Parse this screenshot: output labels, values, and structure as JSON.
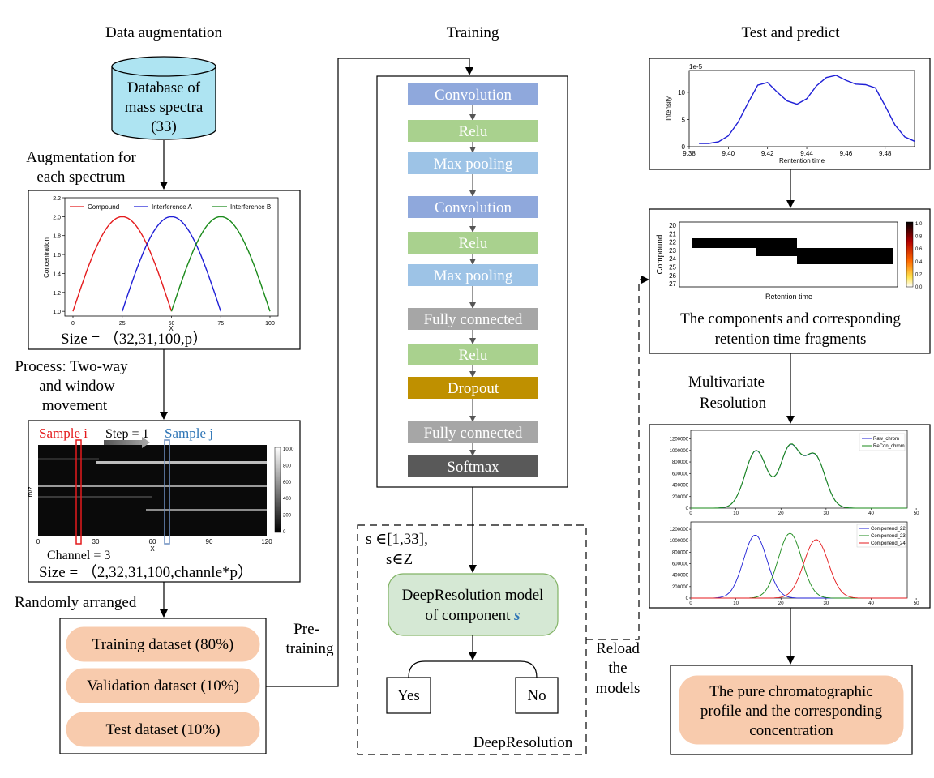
{
  "columns": {
    "augmentation": "Data augmentation",
    "training": "Training",
    "test": "Test and predict"
  },
  "database": {
    "line1": "Database of",
    "line2": "mass spectra",
    "line3": "(33)"
  },
  "aug_label": {
    "line1": "Augmentation for",
    "line2": "each spectrum"
  },
  "aug_plot": {
    "ylabel": "Concentration",
    "xlabel": "X",
    "yticks": [
      "1.0",
      "1.2",
      "1.4",
      "1.6",
      "1.8",
      "2.0",
      "2.2"
    ],
    "xticks": [
      "0",
      "25",
      "50",
      "75",
      "100"
    ],
    "legend": [
      "Compound",
      "Interference A",
      "Interference B"
    ],
    "colors": [
      "#e41a1c",
      "#1f1fd6",
      "#1a8a1a"
    ]
  },
  "size1": "Size = （32,31,100,p）",
  "process_label": {
    "line1": "Process: Two-way",
    "line2": "and window",
    "line3": "movement"
  },
  "heatmap": {
    "sample_i": "Sample i",
    "sample_j": "Sample j",
    "step": "Step = 1",
    "ylabel": "m/z",
    "xlabel": "X",
    "xticks": [
      "0",
      "30",
      "60",
      "90",
      "120"
    ],
    "cbar_ticks": [
      "1000",
      "800",
      "600",
      "400",
      "200",
      "0"
    ],
    "channel": "Channel = 3"
  },
  "size2": "Size = （2,32,31,100,channle*p）",
  "arranged": "Randomly arranged",
  "datasets": [
    "Training dataset (80%)",
    "Validation dataset (10%)",
    "Test dataset (10%)"
  ],
  "pretraining": {
    "line1": "Pre-",
    "line2": "training"
  },
  "layers": [
    "Convolution",
    "Relu",
    "Max pooling",
    "Convolution",
    "Relu",
    "Max pooling",
    "Fully connected",
    "Relu",
    "Dropout",
    "Fully connected",
    "Softmax"
  ],
  "layer_colors": [
    "#8fa8dc",
    "#a9d18e",
    "#9dc3e6",
    "#8fa8dc",
    "#a9d18e",
    "#9dc3e6",
    "#a6a6a6",
    "#a9d18e",
    "#bf9000",
    "#a6a6a6",
    "#595959"
  ],
  "condition": {
    "line1": "s ∈[1,33],",
    "line2": "s∈Z"
  },
  "model": {
    "line1": "DeepResolution model",
    "line2": "of component",
    "symbol": "s"
  },
  "decision": {
    "yes": "Yes",
    "no": "No"
  },
  "deepres_label": "DeepResolution",
  "reload": {
    "line1": "Reload",
    "line2": "the",
    "line3": "models"
  },
  "test_plot": {
    "exponent": "1e-5",
    "ylabel": "Intensity",
    "xlabel": "Rentention time",
    "yticks": [
      "0",
      "5",
      "10"
    ],
    "xticks": [
      "9.38",
      "9.40",
      "9.42",
      "9.44",
      "9.46",
      "9.48"
    ],
    "color": "#1f1fd6"
  },
  "compound_map": {
    "ylabel": "Compound",
    "xlabel": "Retention time",
    "yticks": [
      "20",
      "21",
      "22",
      "23",
      "24",
      "25",
      "26",
      "27"
    ],
    "cbar_ticks": [
      "1.0",
      "0.8",
      "0.6",
      "0.4",
      "0.2",
      "0.0"
    ],
    "caption_line1": "The components and corresponding",
    "caption_line2": "retention time fragments"
  },
  "mcr_label": {
    "line1": "Multivariate",
    "line2": "Resolution"
  },
  "mcr_top": {
    "yticks": [
      "0",
      "200000",
      "400000",
      "600000",
      "800000",
      "1000000",
      "1200000"
    ],
    "xticks": [
      "0",
      "10",
      "20",
      "30",
      "40",
      "50"
    ],
    "legend": [
      "Raw_chrom",
      "ReCon_chrom"
    ],
    "colors": [
      "#1f1fd6",
      "#1a8a1a"
    ]
  },
  "mcr_bottom": {
    "yticks": [
      "0",
      "200000",
      "400000",
      "600000",
      "800000",
      "1000000",
      "1200000"
    ],
    "xticks": [
      "0",
      "10",
      "20",
      "30",
      "40",
      "50"
    ],
    "legend": [
      "Componend_22",
      "Componend_23",
      "Componend_24"
    ],
    "colors": [
      "#1f1fd6",
      "#1a8a1a",
      "#e41a1c"
    ]
  },
  "final": {
    "line1": "The pure chromatographic",
    "line2": "profile and the corresponding",
    "line3": "concentration"
  },
  "style": {
    "orange_fill": "#f8cbad",
    "green_fill": "#d5e8d4",
    "cyan_fill": "#aee4f2",
    "accent_blue": "#2e75b6"
  }
}
